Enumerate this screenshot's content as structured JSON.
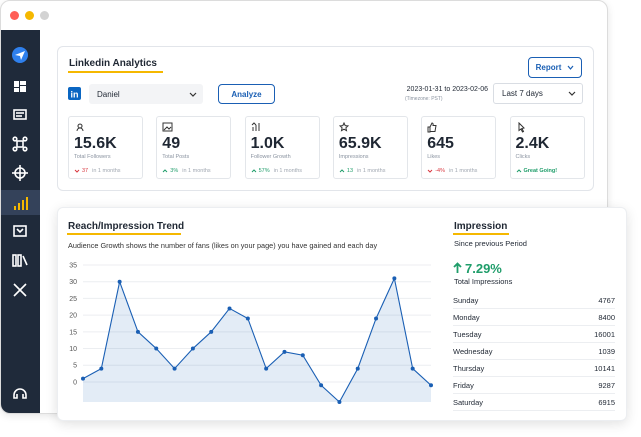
{
  "header": {
    "title": "Linkedin Analytics",
    "report_button": "Report",
    "account": "Daniel",
    "analyze_button": "Analyze",
    "date_range": "2023-01-31 to 2023-02-06",
    "timezone": "(Timezone: PST)",
    "period": "Last 7 days"
  },
  "stats": [
    {
      "value": "15.6K",
      "label": "Total Followers",
      "change": "37",
      "period": "in 1 months",
      "trend": "down"
    },
    {
      "value": "49",
      "label": "Total Posts",
      "change": "3%",
      "period": "in 1 months",
      "trend": "up"
    },
    {
      "value": "1.0K",
      "label": "Follower Growth",
      "change": "57%",
      "period": "in 1 months",
      "trend": "up"
    },
    {
      "value": "65.9K",
      "label": "Impressions",
      "change": "13",
      "period": "in 1 months",
      "trend": "up"
    },
    {
      "value": "645",
      "label": "Likes",
      "change": "-4%",
      "period": "in 1 months",
      "trend": "down"
    },
    {
      "value": "2.4K",
      "label": "Clicks",
      "change": "Great Going!",
      "trend": "up"
    }
  ],
  "chart_data": {
    "type": "line",
    "title": "Reach/Impression Trend",
    "subtitle": "Audience Growth shows the number of fans (likes on your page) you have gained and each day",
    "categories": [
      null,
      null,
      null,
      null,
      null,
      null,
      null,
      null,
      null,
      null,
      null,
      null,
      null,
      null,
      null,
      null,
      null,
      null,
      null,
      null
    ],
    "values": [
      1,
      4,
      30,
      15,
      10,
      4,
      10,
      15,
      22,
      19,
      4,
      9,
      8,
      -1,
      -6,
      4,
      19,
      31,
      4,
      -1
    ],
    "color": "#1a5fb4",
    "ylim": [
      -6,
      35
    ],
    "yticks": [
      0,
      5,
      10,
      15,
      20,
      25,
      30,
      35
    ],
    "grid": true
  },
  "impression": {
    "title": "Impression",
    "subtitle": "Since previous Period",
    "change": "7.29%",
    "label": "Total Impressions",
    "rows": [
      {
        "day": "Sunday",
        "value": 4767
      },
      {
        "day": "Monday",
        "value": 8400
      },
      {
        "day": "Tuesday",
        "value": 16001
      },
      {
        "day": "Wednesday",
        "value": 1039
      },
      {
        "day": "Thursday",
        "value": 10141
      },
      {
        "day": "Friday",
        "value": 9287
      },
      {
        "day": "Saturday",
        "value": 6915
      }
    ]
  }
}
